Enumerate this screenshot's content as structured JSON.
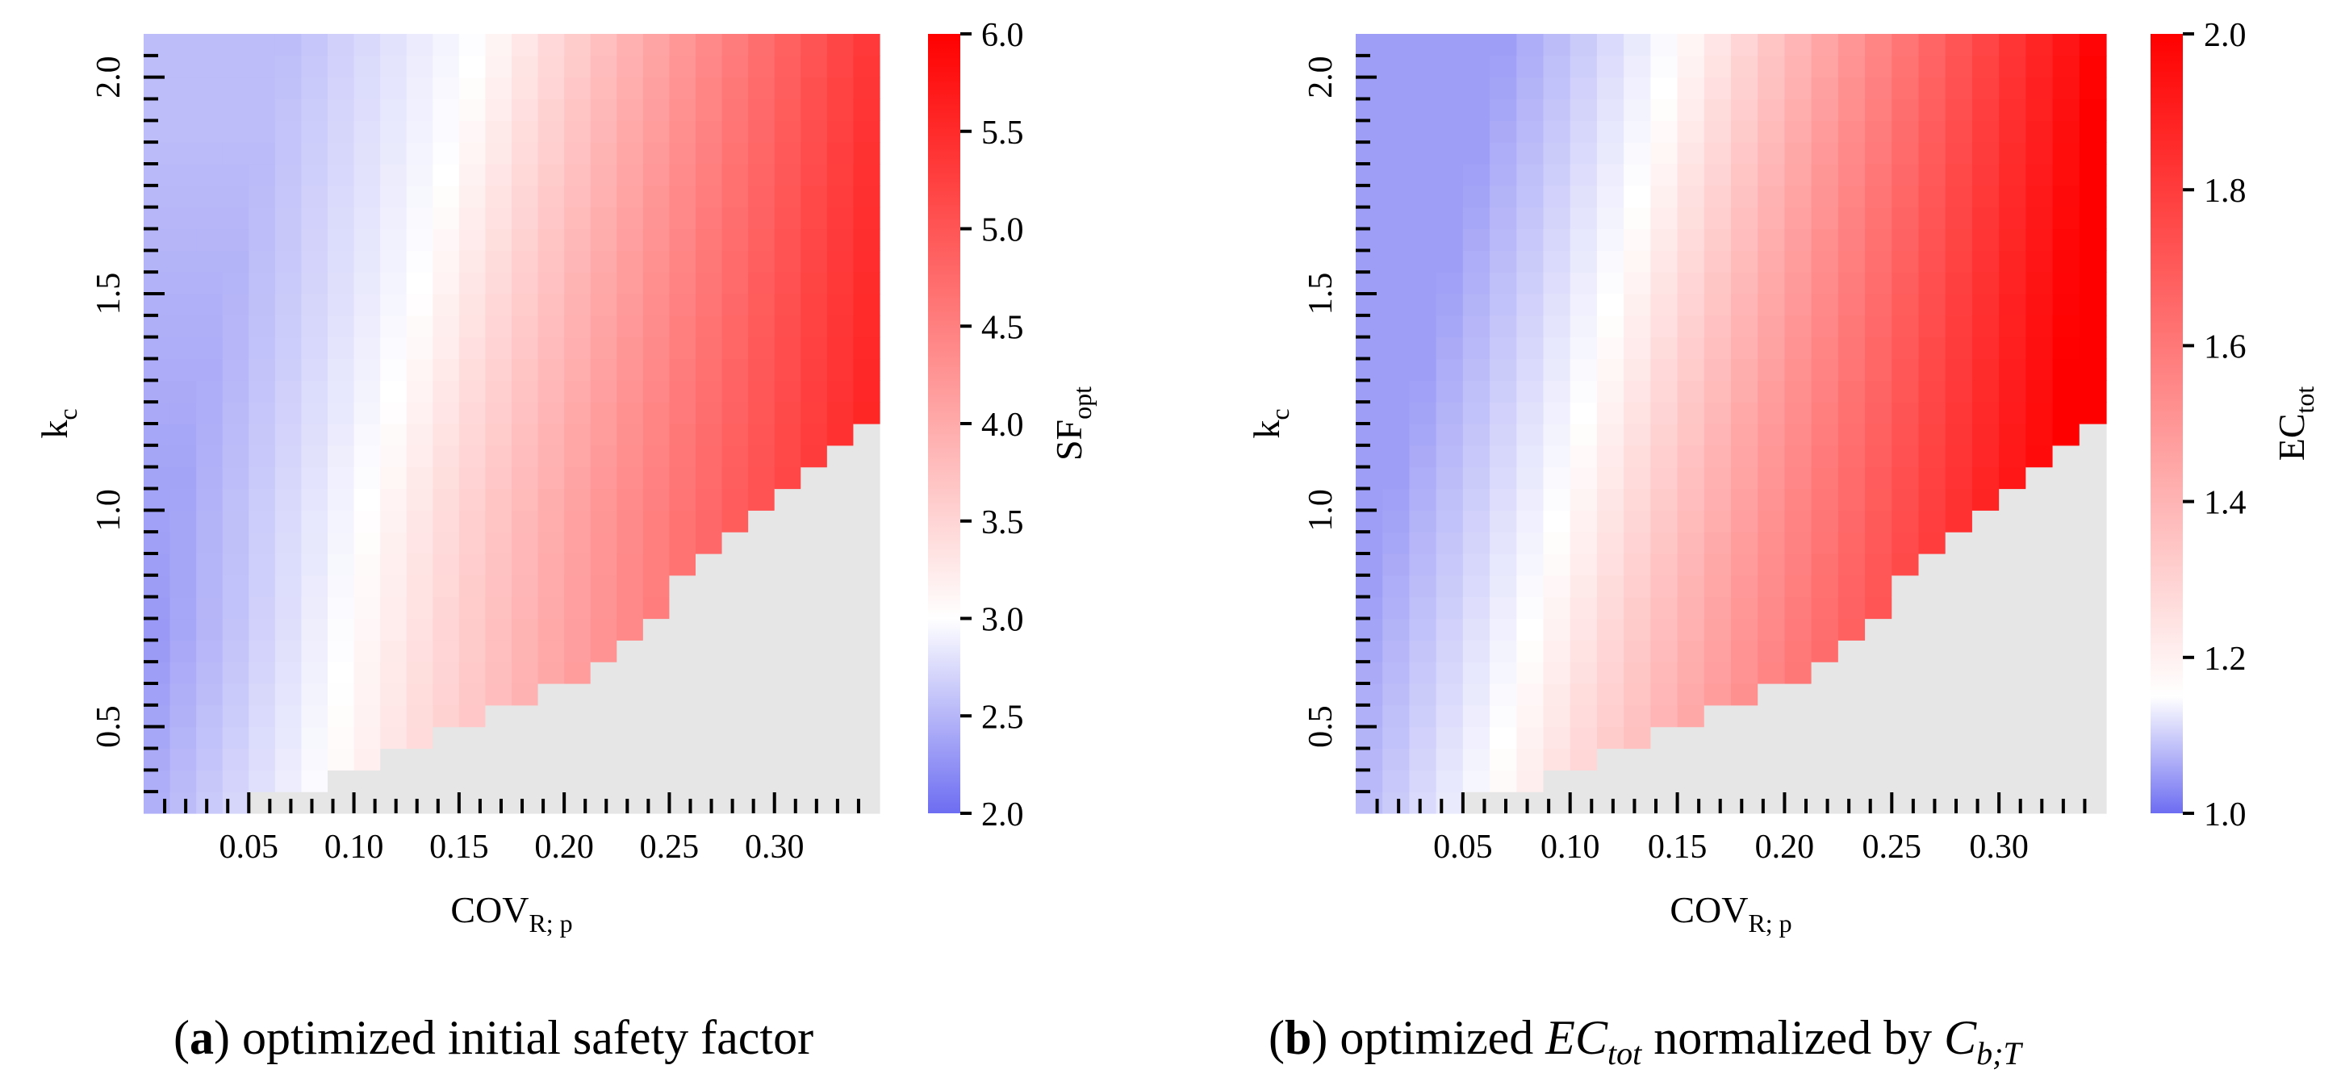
{
  "chart_data": [
    {
      "type": "heatmap",
      "panel": "a",
      "caption_letter": "a",
      "caption_text": "optimized initial safety factor",
      "xlabel": "COV",
      "xlabel_sub": "R; p",
      "ylabel": "k",
      "ylabel_sub": "c",
      "xlim": [
        0.0,
        0.35
      ],
      "ylim": [
        0.3,
        2.1
      ],
      "xticks": [
        0.05,
        0.1,
        0.15,
        0.2,
        0.25,
        0.3
      ],
      "xtick_labels": [
        "0.05",
        "0.10",
        "0.15",
        "0.20",
        "0.25",
        "0.30"
      ],
      "yticks": [
        0.5,
        1.0,
        1.5,
        2.0
      ],
      "ytick_labels": [
        "0.5",
        "1.0",
        "1.5",
        "2.0"
      ],
      "colorbar_label": "SF",
      "colorbar_label_sub": "opt",
      "colorbar_range": [
        2.0,
        6.0
      ],
      "colorbar_center": 3.0,
      "colorbar_ticks": [
        "2.0",
        "2.5",
        "3.0",
        "3.5",
        "4.0",
        "4.5",
        "5.0",
        "5.5",
        "6.0"
      ],
      "colormap": [
        "#6d6df2",
        "#ffffff",
        "#ff0000"
      ],
      "missing_color": "#e6e6e6",
      "grid_nx": 28,
      "grid_ny": 36,
      "feasible_boundary": {
        "cov": [
          0.005,
          0.04,
          0.1,
          0.2,
          0.25,
          0.3,
          0.35
        ],
        "kc_max_infeasible": [
          0.3,
          0.3,
          0.4,
          0.6,
          0.8,
          1.03,
          1.22
        ]
      },
      "value_model": {
        "cov_break": [
          0.0,
          0.07,
          0.12,
          0.2,
          0.25,
          0.35
        ],
        "kc_break": [
          0.3,
          0.75,
          2.1
        ],
        "sample_values": {
          "(0.01,0.35)": 2.35,
          "(0.10,0.5)": 2.3,
          "(0.16,2.0)": 3.0,
          "(0.35,2.1)": 5.2,
          "(0.25,1.1)": 3.9
        }
      }
    },
    {
      "type": "heatmap",
      "panel": "b",
      "caption_letter": "b",
      "caption_parts": [
        "optimized ",
        "EC",
        "tot",
        " normalized by ",
        "C",
        "b;T"
      ],
      "xlabel": "COV",
      "xlabel_sub": "R; p",
      "ylabel": "k",
      "ylabel_sub": "c",
      "xlim": [
        0.0,
        0.35
      ],
      "ylim": [
        0.3,
        2.1
      ],
      "xticks": [
        0.05,
        0.1,
        0.15,
        0.2,
        0.25,
        0.3
      ],
      "xtick_labels": [
        "0.05",
        "0.10",
        "0.15",
        "0.20",
        "0.25",
        "0.30"
      ],
      "yticks": [
        0.5,
        1.0,
        1.5,
        2.0
      ],
      "ytick_labels": [
        "0.5",
        "1.0",
        "1.5",
        "2.0"
      ],
      "colorbar_label": "EC",
      "colorbar_label_sub": "tot",
      "colorbar_range": [
        1.0,
        2.0
      ],
      "colorbar_center": 1.15,
      "colorbar_ticks": [
        "1.0",
        "1.2",
        "1.4",
        "1.6",
        "1.8",
        "2.0"
      ],
      "colormap": [
        "#6d6df2",
        "#ffffff",
        "#ff0000"
      ],
      "missing_color": "#e6e6e6",
      "grid_nx": 28,
      "grid_ny": 36,
      "feasible_boundary": {
        "cov": [
          0.005,
          0.04,
          0.1,
          0.2,
          0.25,
          0.3,
          0.35
        ],
        "kc_max_infeasible": [
          0.3,
          0.3,
          0.4,
          0.6,
          0.8,
          1.03,
          1.22
        ]
      },
      "value_model": {
        "sample_values": {
          "(0.01,0.35)": 1.05,
          "(0.12,1.0)": 1.15,
          "(0.35,2.1)": 1.93,
          "(0.25,1.0)": 1.55
        }
      }
    }
  ]
}
